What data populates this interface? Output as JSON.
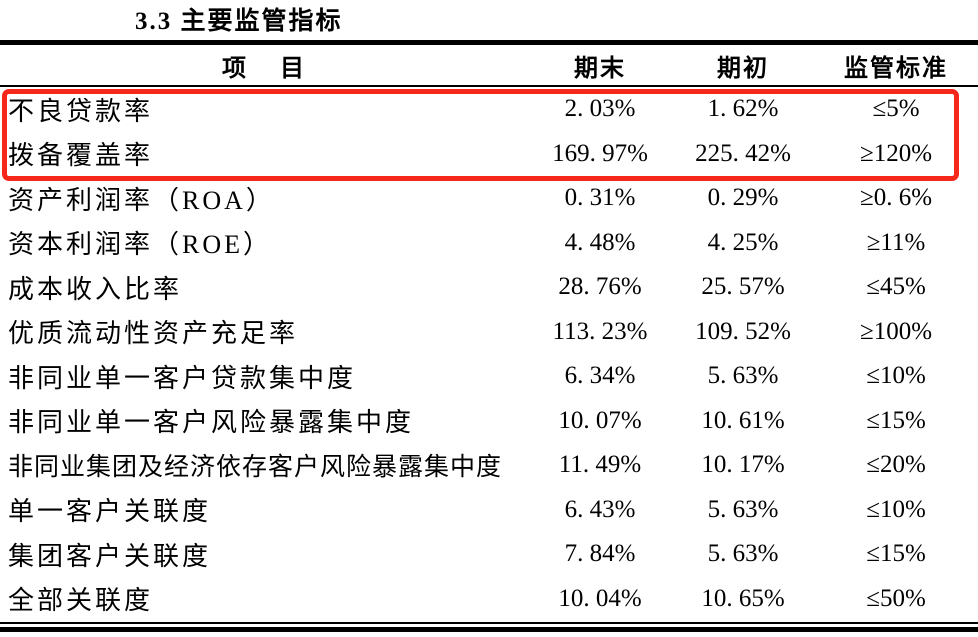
{
  "title": "3.3 主要监管指标",
  "table": {
    "headers": {
      "item": "项    目",
      "end": "期末",
      "begin": "期初",
      "standard": "监管标准"
    },
    "rows": [
      {
        "item": "不良贷款率",
        "end": "2. 03%",
        "begin": "1. 62%",
        "standard": "≤5%"
      },
      {
        "item": "拨备覆盖率",
        "end": "169. 97%",
        "begin": "225. 42%",
        "standard": "≥120%"
      },
      {
        "item": "资产利润率（ROA）",
        "end": "0. 31%",
        "begin": "0. 29%",
        "standard": "≥0. 6%"
      },
      {
        "item": "资本利润率（ROE）",
        "end": "4. 48%",
        "begin": "4. 25%",
        "standard": "≥11%"
      },
      {
        "item": "成本收入比率",
        "end": "28. 76%",
        "begin": "25. 57%",
        "standard": "≤45%"
      },
      {
        "item": "优质流动性资产充足率",
        "end": "113. 23%",
        "begin": "109. 52%",
        "standard": "≥100%"
      },
      {
        "item": "非同业单一客户贷款集中度",
        "end": "6. 34%",
        "begin": "5. 63%",
        "standard": "≤10%"
      },
      {
        "item": "非同业单一客户风险暴露集中度",
        "end": "10. 07%",
        "begin": "10. 61%",
        "standard": "≤15%"
      },
      {
        "item": "非同业集团及经济依存客户风险暴露集中度",
        "end": "11. 49%",
        "begin": "10. 17%",
        "standard": "≤20%"
      },
      {
        "item": "单一客户关联度",
        "end": "6. 43%",
        "begin": "5. 63%",
        "standard": "≤10%"
      },
      {
        "item": "集团客户关联度",
        "end": "7. 84%",
        "begin": "5. 63%",
        "standard": "≤15%"
      },
      {
        "item": "全部关联度",
        "end": "10. 04%",
        "begin": "10. 65%",
        "standard": "≤50%"
      }
    ]
  },
  "highlight": {
    "color": "#f5281b"
  }
}
